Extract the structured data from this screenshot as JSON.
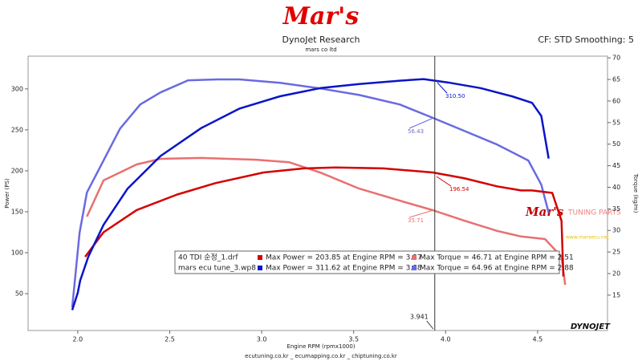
{
  "chart_data": {
    "type": "line",
    "logo": "Mar's",
    "title": "DynoJet Research",
    "subtitle": "mars co ltd",
    "header_right": "CF: STD Smoothing: 5",
    "x_label": "Engine RPM (rpmx1000)",
    "y_label": "Power (PS)",
    "y2_label": "Torque (kg/m)",
    "footer": "ecutuning.co.kr _ ecumapping.co.kr _ chiptuning.co.kr",
    "watermark": "Mar's",
    "watermark_sub": "TUNING PARTS",
    "watermark_url": "www.marsecu.net",
    "brand": "DYNOJET",
    "xlim": [
      1.73,
      4.88
    ],
    "xticks": [
      {
        "value": 2,
        "label": "2.0"
      },
      2.5,
      {
        "value": 3,
        "label": "3.0"
      },
      3.5,
      {
        "value": 4,
        "label": "4.0"
      },
      4.5
    ],
    "ylim": [
      5,
      340
    ],
    "yticks": [
      50,
      100,
      150,
      200,
      250,
      300
    ],
    "y2lim": [
      6.8,
      70.4
    ],
    "y2ticks": [
      15,
      20,
      25,
      30,
      35,
      40,
      45,
      50,
      55,
      60,
      65,
      70
    ],
    "cursor": 3.941,
    "annotations": [
      "310.50",
      "56.43",
      "196.54",
      "35.71"
    ],
    "legend_files": [
      "40 TDI 순정_1.drf",
      "mars ecu tune_3.wp8"
    ],
    "series": [
      {
        "name": "Max Power = 203.85 at Engine RPM = 3.37",
        "color": "#d40000",
        "x": [
          2.04,
          2.14,
          2.32,
          2.54,
          2.75,
          3.01,
          3.23,
          3.4,
          3.66,
          3.93,
          4.1,
          4.28,
          4.41,
          4.47,
          4.58,
          4.63,
          4.64
        ],
        "values": [
          95,
          125,
          152,
          171,
          185,
          198,
          203,
          204,
          203,
          198,
          191,
          181,
          176,
          176,
          173,
          139,
          71
        ]
      },
      {
        "name": "Max Power = 311.62 at Engine RPM = 3.88",
        "color": "#0a14c8",
        "x": [
          1.97,
          2.0,
          2.013,
          2.057,
          2.14,
          2.27,
          2.45,
          2.67,
          2.88,
          3.1,
          3.32,
          3.53,
          3.75,
          3.88,
          4.01,
          4.19,
          4.36,
          4.47,
          4.52,
          4.56
        ],
        "values": [
          30,
          51,
          66,
          95,
          134,
          178,
          218,
          252,
          276,
          291,
          301,
          306,
          310,
          312,
          308,
          301,
          291,
          283,
          267,
          215
        ]
      },
      {
        "name": "Max Torque = 46.71 at Engine RPM = 2.51",
        "color": "#e87070",
        "axis": "y2",
        "x": [
          2.05,
          2.14,
          2.32,
          2.45,
          2.67,
          2.97,
          3.15,
          3.32,
          3.53,
          3.75,
          3.93,
          4.1,
          4.28,
          4.41,
          4.54,
          4.63,
          4.65
        ],
        "values": [
          33.2,
          41.6,
          45.3,
          46.6,
          46.8,
          46.4,
          45.8,
          43.4,
          39.7,
          36.9,
          34.7,
          32.3,
          29.9,
          28.6,
          28.0,
          23.9,
          17.4
        ]
      },
      {
        "name": "Max Torque = 64.96 at Engine RPM = 2.88",
        "color": "#6a6ae0",
        "axis": "y2",
        "x": [
          1.97,
          2.01,
          2.05,
          2.14,
          2.23,
          2.34,
          2.45,
          2.6,
          2.76,
          2.88,
          3.1,
          3.32,
          3.53,
          3.75,
          3.93,
          4.1,
          4.28,
          4.45,
          4.52,
          4.56
        ],
        "values": [
          12.2,
          29.5,
          38.8,
          46.2,
          53.6,
          59.2,
          62,
          64.8,
          65,
          65,
          64.2,
          62.9,
          61.4,
          59.2,
          56.1,
          53.1,
          49.9,
          46.2,
          40.6,
          34.1
        ]
      }
    ]
  }
}
